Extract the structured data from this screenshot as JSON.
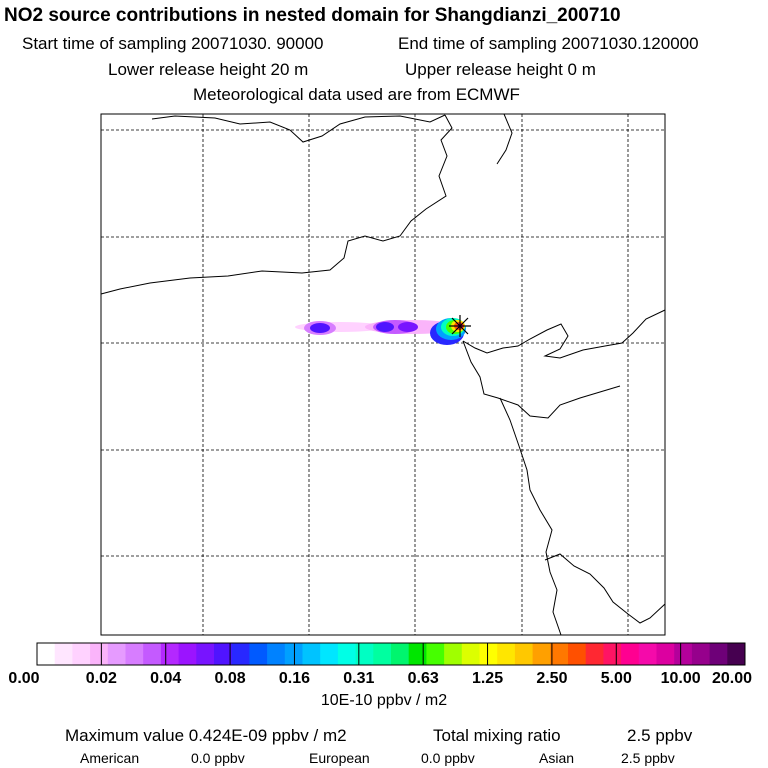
{
  "header": {
    "title": "NO2 source contributions in nested domain for Shangdianzi_200710",
    "start_label": "Start time of sampling 20071030. 90000",
    "end_label": "End time of sampling 20071030.120000",
    "lower_label": "Lower release height   20 m",
    "upper_label": "Upper release height    0 m",
    "met_label": "Meteorological data used are from ECMWF"
  },
  "chart_data": {
    "type": "heatmap",
    "title": "NO2 source contributions in nested domain for Shangdianzi_200710",
    "colorbar": {
      "tick_labels": [
        "0.00",
        "0.02",
        "0.04",
        "0.08",
        "0.16",
        "0.31",
        "0.63",
        "1.25",
        "2.50",
        "5.00",
        "10.00",
        "20.00"
      ],
      "units": "10E-10 ppbv / m2",
      "colors": [
        "#ffffff",
        "#ffe6ff",
        "#ffd2ff",
        "#fab4fa",
        "#e69bff",
        "#d77dff",
        "#c45aff",
        "#b428ff",
        "#9b14ff",
        "#7814ff",
        "#5014ff",
        "#2828ff",
        "#005aff",
        "#0082ff",
        "#00a0ff",
        "#00c3ff",
        "#00e6ff",
        "#00ffe6",
        "#00ffc3",
        "#00ffa0",
        "#00f56e",
        "#00e600",
        "#46ff00",
        "#a0ff00",
        "#dcff00",
        "#ffff00",
        "#ffe600",
        "#ffc800",
        "#ffa000",
        "#ff7800",
        "#ff5000",
        "#ff2832",
        "#ff1464",
        "#ff0091",
        "#f50aaa",
        "#dc00a0",
        "#b4009b",
        "#96008c",
        "#6e0078",
        "#460050"
      ]
    },
    "grid": true,
    "receptor_marker": "Shangdianzi"
  },
  "footer": {
    "max_label": "Maximum value  0.424E-09 ppbv / m2",
    "total_label": "Total mixing ratio",
    "total_value": "2.5 ppbv",
    "american_label": "American",
    "american_value": "0.0 ppbv",
    "european_label": "European",
    "european_value": "0.0 ppbv",
    "asian_label": "Asian",
    "asian_value": "2.5 ppbv"
  }
}
